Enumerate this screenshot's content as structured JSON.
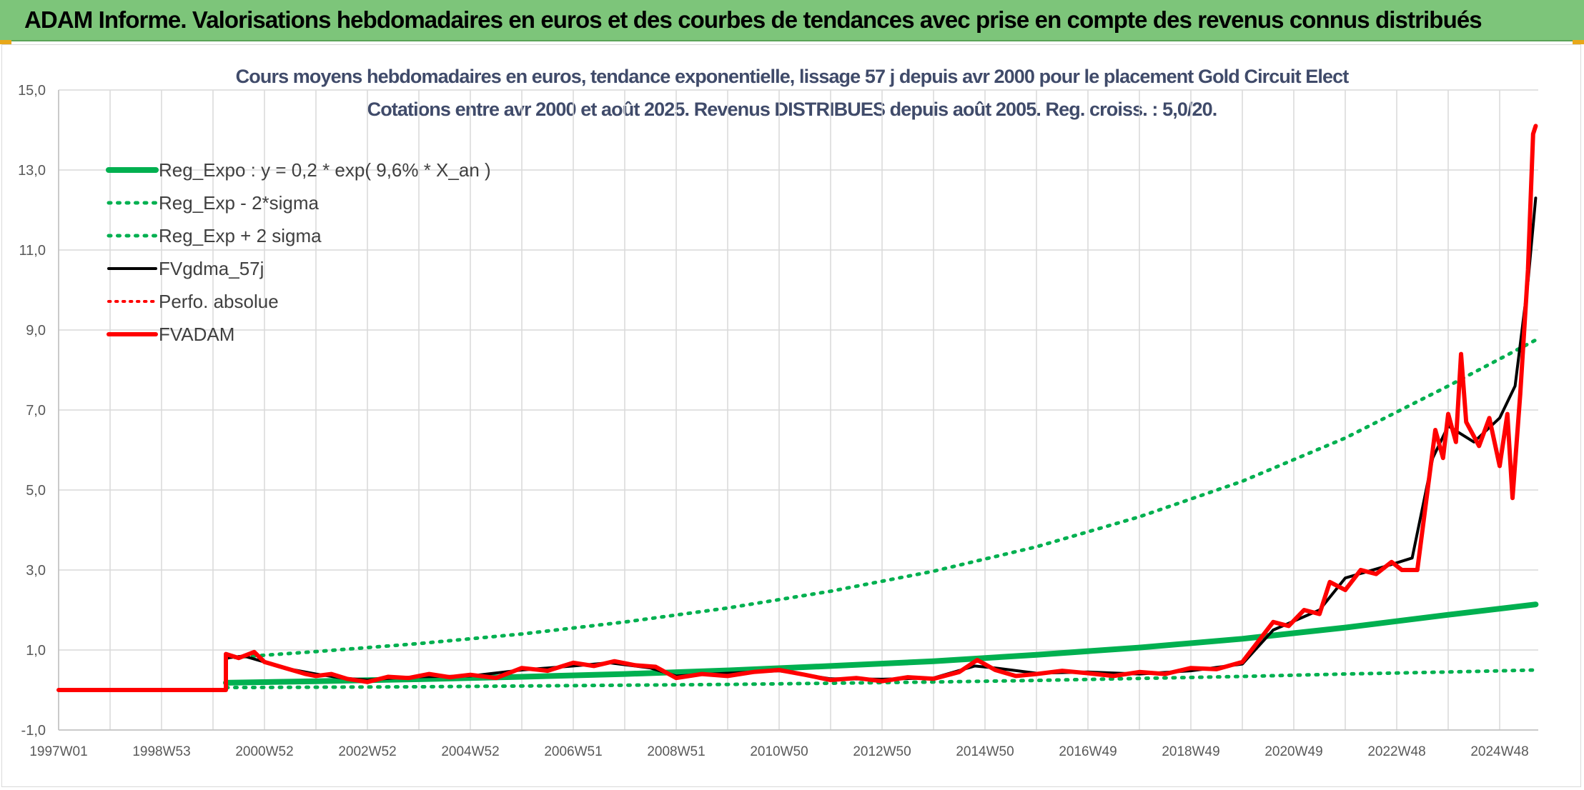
{
  "header": {
    "title": "ADAM Informe. Valorisations hebdomadaires en euros et des courbes de tendances avec prise en compte des revenus connus distribués"
  },
  "chart_data": {
    "type": "line",
    "title": "Cours moyens hebdomadaires en euros, tendance exponentielle, lissage 57 j depuis avr 2000 pour le placement Gold Circuit Elect",
    "subtitle": "Cotations entre avr 2000 et août 2025. Revenus DISTRIBUES depuis août 2005. Reg. croiss. : 5,0/20.",
    "xlabel": "",
    "ylabel": "",
    "xlim": [
      1997.0,
      2025.75
    ],
    "ylim": [
      -1,
      15
    ],
    "y_ticks": [
      "-1,0",
      "1,0",
      "3,0",
      "5,0",
      "7,0",
      "9,0",
      "11,0",
      "13,0",
      "15,0"
    ],
    "x_ticks": [
      {
        "t": 1997.0,
        "label": "1997W01"
      },
      {
        "t": 1999.0,
        "label": "1998W53"
      },
      {
        "t": 2001.0,
        "label": "2000W52"
      },
      {
        "t": 2003.0,
        "label": "2002W52"
      },
      {
        "t": 2005.0,
        "label": "2004W52"
      },
      {
        "t": 2007.0,
        "label": "2006W51"
      },
      {
        "t": 2009.0,
        "label": "2008W51"
      },
      {
        "t": 2011.0,
        "label": "2010W50"
      },
      {
        "t": 2013.0,
        "label": "2012W50"
      },
      {
        "t": 2015.0,
        "label": "2014W50"
      },
      {
        "t": 2017.0,
        "label": "2016W49"
      },
      {
        "t": 2019.0,
        "label": "2018W49"
      },
      {
        "t": 2021.0,
        "label": "2020W49"
      },
      {
        "t": 2023.0,
        "label": "2022W48"
      },
      {
        "t": 2025.0,
        "label": "2024W48"
      }
    ],
    "grid": true,
    "legend_position": "top-left",
    "series": [
      {
        "name": "Reg_Expo : y = 0,2 * exp( 9,6% *  X_an )",
        "color": "#00b050",
        "style": "solid",
        "width": 8,
        "points": [
          [
            2000.25,
            0.18
          ],
          [
            2002,
            0.22
          ],
          [
            2004,
            0.27
          ],
          [
            2006,
            0.33
          ],
          [
            2008,
            0.4
          ],
          [
            2010,
            0.49
          ],
          [
            2012,
            0.6
          ],
          [
            2014,
            0.72
          ],
          [
            2016,
            0.88
          ],
          [
            2018,
            1.06
          ],
          [
            2020,
            1.28
          ],
          [
            2022,
            1.56
          ],
          [
            2024,
            1.88
          ],
          [
            2025.7,
            2.14
          ]
        ]
      },
      {
        "name": "Reg_Exp - 2*sigma",
        "color": "#00b050",
        "style": "dotted",
        "width": 5,
        "points": [
          [
            2000.25,
            0.06
          ],
          [
            2002,
            0.07
          ],
          [
            2004,
            0.08
          ],
          [
            2006,
            0.1
          ],
          [
            2008,
            0.12
          ],
          [
            2010,
            0.14
          ],
          [
            2012,
            0.17
          ],
          [
            2014,
            0.2
          ],
          [
            2016,
            0.24
          ],
          [
            2018,
            0.29
          ],
          [
            2020,
            0.34
          ],
          [
            2022,
            0.4
          ],
          [
            2024,
            0.45
          ],
          [
            2025.7,
            0.5
          ]
        ]
      },
      {
        "name": "Reg_Exp + 2 sigma",
        "color": "#00b050",
        "style": "dotted",
        "width": 5,
        "points": [
          [
            2000.25,
            0.8
          ],
          [
            2002,
            0.96
          ],
          [
            2004,
            1.16
          ],
          [
            2006,
            1.4
          ],
          [
            2008,
            1.7
          ],
          [
            2010,
            2.05
          ],
          [
            2012,
            2.47
          ],
          [
            2014,
            2.97
          ],
          [
            2016,
            3.58
          ],
          [
            2018,
            4.33
          ],
          [
            2020,
            5.22
          ],
          [
            2022,
            6.3
          ],
          [
            2024,
            7.6
          ],
          [
            2025.7,
            8.75
          ]
        ]
      },
      {
        "name": "FVgdma_57j",
        "color": "#000000",
        "style": "solid",
        "width": 4,
        "points": [
          [
            1997.0,
            0.0
          ],
          [
            2000.25,
            0.0
          ],
          [
            2000.25,
            0.8
          ],
          [
            2000.6,
            0.85
          ],
          [
            2001.0,
            0.7
          ],
          [
            2001.5,
            0.52
          ],
          [
            2002.0,
            0.4
          ],
          [
            2002.5,
            0.3
          ],
          [
            2003.0,
            0.25
          ],
          [
            2003.5,
            0.3
          ],
          [
            2004.0,
            0.33
          ],
          [
            2005.0,
            0.35
          ],
          [
            2006.0,
            0.5
          ],
          [
            2007.0,
            0.6
          ],
          [
            2007.7,
            0.68
          ],
          [
            2008.5,
            0.55
          ],
          [
            2009.0,
            0.35
          ],
          [
            2010.0,
            0.42
          ],
          [
            2011.0,
            0.48
          ],
          [
            2012.0,
            0.28
          ],
          [
            2013.0,
            0.27
          ],
          [
            2014.0,
            0.3
          ],
          [
            2014.8,
            0.6
          ],
          [
            2015.2,
            0.55
          ],
          [
            2016.0,
            0.42
          ],
          [
            2017.0,
            0.45
          ],
          [
            2018.0,
            0.4
          ],
          [
            2019.0,
            0.48
          ],
          [
            2020.0,
            0.65
          ],
          [
            2020.6,
            1.5
          ],
          [
            2021.5,
            2.0
          ],
          [
            2022.0,
            2.8
          ],
          [
            2022.8,
            3.1
          ],
          [
            2023.3,
            3.3
          ],
          [
            2023.7,
            5.8
          ],
          [
            2024.0,
            6.6
          ],
          [
            2024.5,
            6.2
          ],
          [
            2025.0,
            6.8
          ],
          [
            2025.3,
            7.6
          ],
          [
            2025.55,
            10.2
          ],
          [
            2025.7,
            12.3
          ]
        ]
      },
      {
        "name": "Perfo. absolue",
        "color": "#ff0000",
        "style": "dotted",
        "width": 4,
        "points": []
      },
      {
        "name": "FVADAM",
        "color": "#ff0000",
        "style": "solid",
        "width": 6,
        "points": [
          [
            1997.0,
            0.0
          ],
          [
            2000.25,
            0.0
          ],
          [
            2000.25,
            0.9
          ],
          [
            2000.5,
            0.8
          ],
          [
            2000.8,
            0.95
          ],
          [
            2001.0,
            0.7
          ],
          [
            2001.4,
            0.55
          ],
          [
            2001.8,
            0.4
          ],
          [
            2002.0,
            0.35
          ],
          [
            2002.3,
            0.4
          ],
          [
            2002.6,
            0.28
          ],
          [
            2003.0,
            0.2
          ],
          [
            2003.4,
            0.33
          ],
          [
            2003.8,
            0.3
          ],
          [
            2004.2,
            0.4
          ],
          [
            2004.6,
            0.32
          ],
          [
            2005.0,
            0.38
          ],
          [
            2005.5,
            0.3
          ],
          [
            2006.0,
            0.55
          ],
          [
            2006.5,
            0.48
          ],
          [
            2007.0,
            0.68
          ],
          [
            2007.4,
            0.6
          ],
          [
            2007.8,
            0.72
          ],
          [
            2008.2,
            0.62
          ],
          [
            2008.6,
            0.58
          ],
          [
            2009.0,
            0.3
          ],
          [
            2009.5,
            0.4
          ],
          [
            2010.0,
            0.35
          ],
          [
            2010.5,
            0.45
          ],
          [
            2011.0,
            0.5
          ],
          [
            2011.5,
            0.38
          ],
          [
            2012.0,
            0.25
          ],
          [
            2012.5,
            0.3
          ],
          [
            2013.0,
            0.22
          ],
          [
            2013.5,
            0.32
          ],
          [
            2014.0,
            0.28
          ],
          [
            2014.5,
            0.45
          ],
          [
            2014.85,
            0.75
          ],
          [
            2015.2,
            0.5
          ],
          [
            2015.6,
            0.35
          ],
          [
            2016.0,
            0.4
          ],
          [
            2016.5,
            0.48
          ],
          [
            2017.0,
            0.42
          ],
          [
            2017.5,
            0.35
          ],
          [
            2018.0,
            0.45
          ],
          [
            2018.5,
            0.4
          ],
          [
            2019.0,
            0.55
          ],
          [
            2019.5,
            0.52
          ],
          [
            2020.0,
            0.7
          ],
          [
            2020.3,
            1.2
          ],
          [
            2020.6,
            1.7
          ],
          [
            2020.9,
            1.6
          ],
          [
            2021.2,
            2.0
          ],
          [
            2021.5,
            1.9
          ],
          [
            2021.7,
            2.7
          ],
          [
            2022.0,
            2.5
          ],
          [
            2022.3,
            3.0
          ],
          [
            2022.6,
            2.9
          ],
          [
            2022.9,
            3.2
          ],
          [
            2023.1,
            3.0
          ],
          [
            2023.4,
            3.0
          ],
          [
            2023.6,
            5.0
          ],
          [
            2023.75,
            6.5
          ],
          [
            2023.9,
            5.8
          ],
          [
            2024.0,
            6.9
          ],
          [
            2024.15,
            6.2
          ],
          [
            2024.25,
            8.4
          ],
          [
            2024.35,
            6.7
          ],
          [
            2024.6,
            6.1
          ],
          [
            2024.8,
            6.8
          ],
          [
            2025.0,
            5.6
          ],
          [
            2025.15,
            6.9
          ],
          [
            2025.25,
            4.8
          ],
          [
            2025.4,
            7.4
          ],
          [
            2025.55,
            10.5
          ],
          [
            2025.65,
            13.9
          ],
          [
            2025.7,
            14.1
          ]
        ]
      }
    ]
  }
}
